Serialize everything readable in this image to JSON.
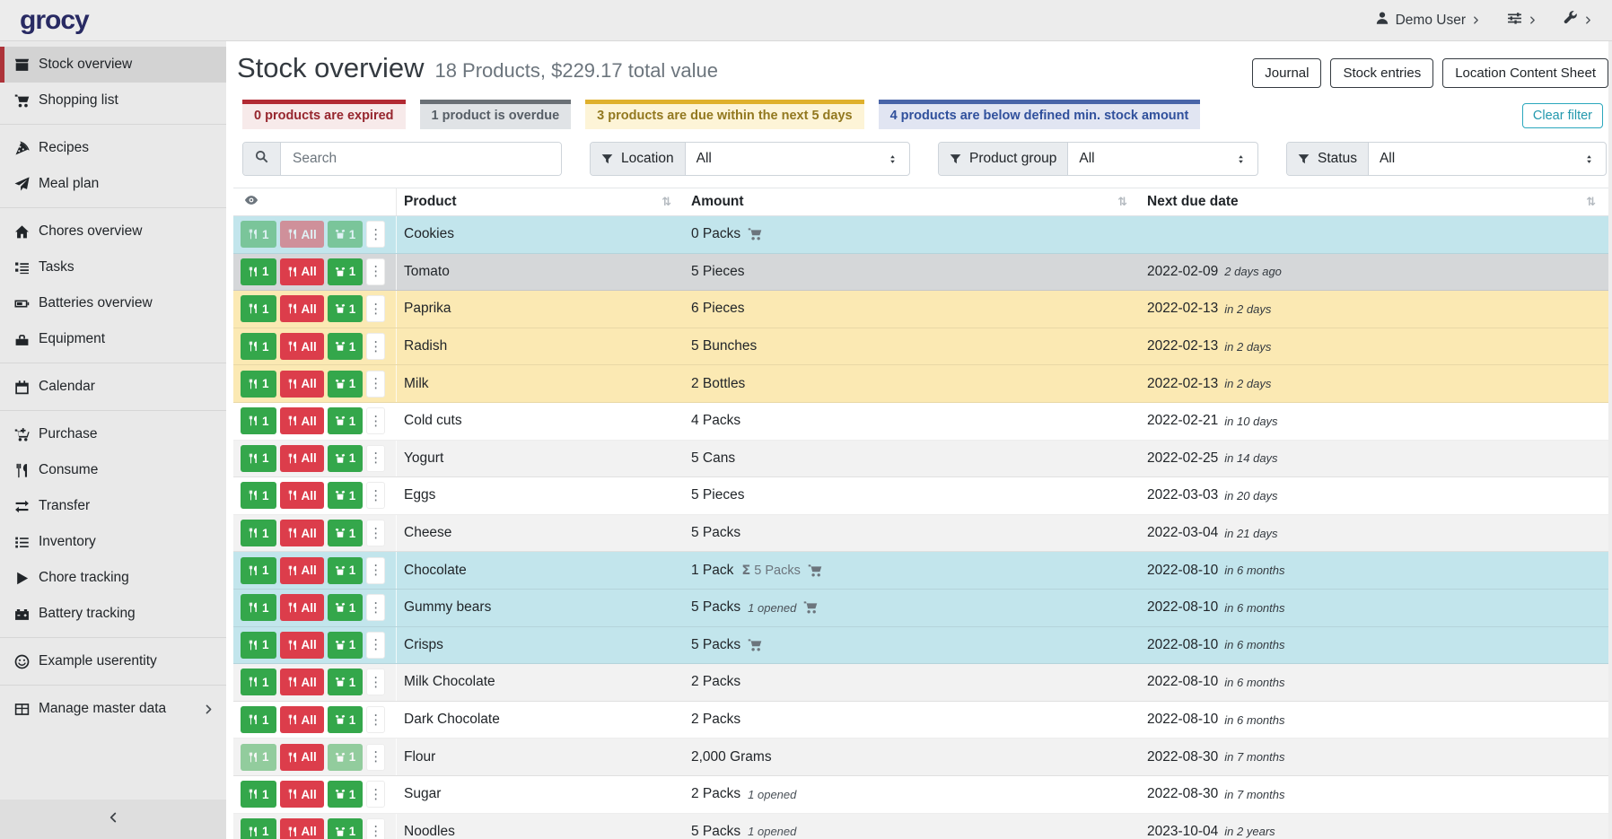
{
  "navbar": {
    "logo": "grocy",
    "user_menu": {
      "icon": "user",
      "label": "Demo User"
    },
    "settings_menu": {
      "icon": "sliders"
    },
    "admin_menu": {
      "icon": "wrench"
    }
  },
  "sidebar": {
    "groups": [
      [
        {
          "icon": "box",
          "label": "Stock overview",
          "active": true
        },
        {
          "icon": "cart",
          "label": "Shopping list"
        }
      ],
      [
        {
          "icon": "pizza",
          "label": "Recipes"
        },
        {
          "icon": "paper-plane",
          "label": "Meal plan"
        }
      ],
      [
        {
          "icon": "home",
          "label": "Chores overview"
        },
        {
          "icon": "tasks",
          "label": "Tasks"
        },
        {
          "icon": "battery",
          "label": "Batteries overview"
        },
        {
          "icon": "toolbox",
          "label": "Equipment"
        }
      ],
      [
        {
          "icon": "calendar",
          "label": "Calendar"
        }
      ],
      [
        {
          "icon": "cart-plus",
          "label": "Purchase"
        },
        {
          "icon": "utensils",
          "label": "Consume"
        },
        {
          "icon": "exchange",
          "label": "Transfer"
        },
        {
          "icon": "list",
          "label": "Inventory"
        },
        {
          "icon": "play",
          "label": "Chore tracking"
        },
        {
          "icon": "car-battery",
          "label": "Battery tracking"
        }
      ],
      [
        {
          "icon": "smile",
          "label": "Example userentity"
        }
      ],
      [
        {
          "icon": "table",
          "label": "Manage master data",
          "submenu": true
        }
      ]
    ]
  },
  "page": {
    "title": "Stock overview",
    "subtitle": "18 Products, $229.17 total value",
    "actions": [
      "Journal",
      "Stock entries",
      "Location Content Sheet"
    ],
    "clear_filter_label": "Clear filter"
  },
  "banners": [
    {
      "type": "expired",
      "text": "0 products are expired"
    },
    {
      "type": "overdue",
      "text": "1 product is overdue"
    },
    {
      "type": "due",
      "text": "3 products are due within the next 5 days"
    },
    {
      "type": "min",
      "text": "4 products are below defined min. stock amount"
    }
  ],
  "filters": {
    "search_placeholder": "Search",
    "selects": [
      {
        "label": "Location",
        "value": "All"
      },
      {
        "label": "Product group",
        "value": "All"
      },
      {
        "label": "Status",
        "value": "All"
      }
    ]
  },
  "glyphs": {
    "sort": "⇅",
    "sigma": "Σ",
    "ellipsis": "⋮"
  },
  "table": {
    "columns": [
      "Product",
      "Amount",
      "Next due date"
    ],
    "row_buttons": {
      "consume_one": "1",
      "consume_all": "All",
      "open_one": "1"
    },
    "rows": [
      {
        "product": "Cookies",
        "amount": "0 Packs",
        "aggregated": null,
        "opened": null,
        "cart": true,
        "date": "",
        "relative": "",
        "status": "below-min",
        "faded": [
          "consume1",
          "consumeAll",
          "open1"
        ]
      },
      {
        "product": "Tomato",
        "amount": "5 Pieces",
        "aggregated": null,
        "opened": null,
        "cart": false,
        "date": "2022-02-09",
        "relative": "2 days ago",
        "status": "overdue",
        "faded": []
      },
      {
        "product": "Paprika",
        "amount": "6 Pieces",
        "aggregated": null,
        "opened": null,
        "cart": false,
        "date": "2022-02-13",
        "relative": "in 2 days",
        "status": "due-soon",
        "faded": []
      },
      {
        "product": "Radish",
        "amount": "5 Bunches",
        "aggregated": null,
        "opened": null,
        "cart": false,
        "date": "2022-02-13",
        "relative": "in 2 days",
        "status": "due-soon",
        "faded": []
      },
      {
        "product": "Milk",
        "amount": "2 Bottles",
        "aggregated": null,
        "opened": null,
        "cart": false,
        "date": "2022-02-13",
        "relative": "in 2 days",
        "status": "due-soon",
        "faded": []
      },
      {
        "product": "Cold cuts",
        "amount": "4 Packs",
        "aggregated": null,
        "opened": null,
        "cart": false,
        "date": "2022-02-21",
        "relative": "in 10 days",
        "status": null,
        "faded": []
      },
      {
        "product": "Yogurt",
        "amount": "5 Cans",
        "aggregated": null,
        "opened": null,
        "cart": false,
        "date": "2022-02-25",
        "relative": "in 14 days",
        "status": "stripe",
        "faded": []
      },
      {
        "product": "Eggs",
        "amount": "5 Pieces",
        "aggregated": null,
        "opened": null,
        "cart": false,
        "date": "2022-03-03",
        "relative": "in 20 days",
        "status": null,
        "faded": []
      },
      {
        "product": "Cheese",
        "amount": "5 Packs",
        "aggregated": null,
        "opened": null,
        "cart": false,
        "date": "2022-03-04",
        "relative": "in 21 days",
        "status": "stripe",
        "faded": []
      },
      {
        "product": "Chocolate",
        "amount": "1 Pack",
        "aggregated": "5 Packs",
        "opened": null,
        "cart": true,
        "date": "2022-08-10",
        "relative": "in 6 months",
        "status": "below-min",
        "faded": []
      },
      {
        "product": "Gummy bears",
        "amount": "5 Packs",
        "aggregated": null,
        "opened": "1 opened",
        "cart": true,
        "date": "2022-08-10",
        "relative": "in 6 months",
        "status": "below-min",
        "faded": []
      },
      {
        "product": "Crisps",
        "amount": "5 Packs",
        "aggregated": null,
        "opened": null,
        "cart": true,
        "date": "2022-08-10",
        "relative": "in 6 months",
        "status": "below-min",
        "faded": []
      },
      {
        "product": "Milk Chocolate",
        "amount": "2 Packs",
        "aggregated": null,
        "opened": null,
        "cart": false,
        "date": "2022-08-10",
        "relative": "in 6 months",
        "status": "stripe",
        "faded": []
      },
      {
        "product": "Dark Chocolate",
        "amount": "2 Packs",
        "aggregated": null,
        "opened": null,
        "cart": false,
        "date": "2022-08-10",
        "relative": "in 6 months",
        "status": null,
        "faded": []
      },
      {
        "product": "Flour",
        "amount": "2,000 Grams",
        "aggregated": null,
        "opened": null,
        "cart": false,
        "date": "2022-08-30",
        "relative": "in 7 months",
        "status": "stripe",
        "faded": [
          "consume1",
          "open1"
        ]
      },
      {
        "product": "Sugar",
        "amount": "2 Packs",
        "aggregated": null,
        "opened": "1 opened",
        "cart": false,
        "date": "2022-08-30",
        "relative": "in 7 months",
        "status": null,
        "faded": []
      },
      {
        "product": "Noodles",
        "amount": "5 Packs",
        "aggregated": null,
        "opened": "1 opened",
        "cart": false,
        "date": "2023-10-04",
        "relative": "in 2 years",
        "status": "stripe",
        "faded": []
      }
    ]
  },
  "colors": {
    "accent_green": "#34a74b",
    "accent_red": "#dc3d4b",
    "row_below_min": "#c2e5ec",
    "row_overdue": "#d5d7d9",
    "row_due_soon": "#fbe9b3",
    "sidebar_active_border": "#ad3339",
    "clear_filter": "#2aa7bd"
  }
}
